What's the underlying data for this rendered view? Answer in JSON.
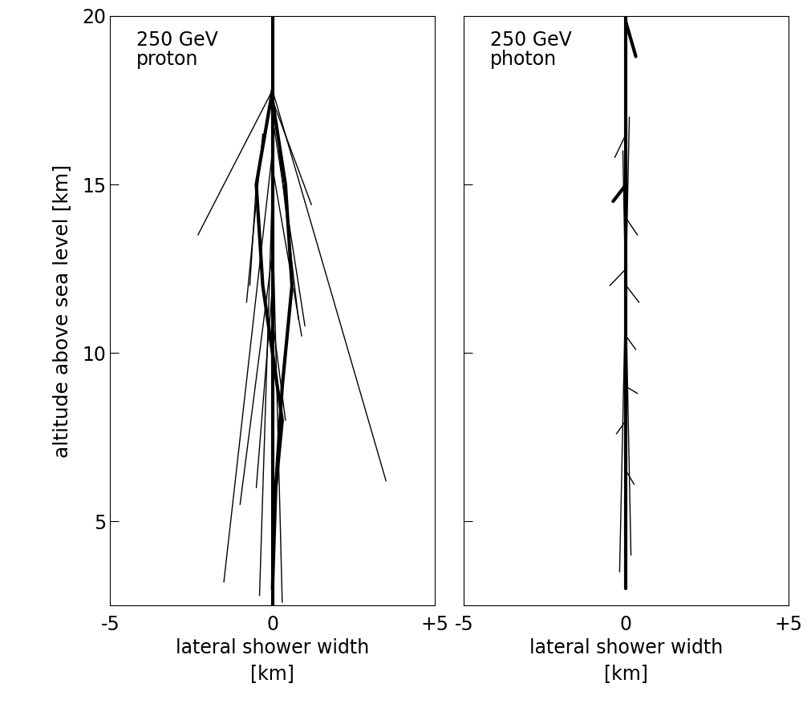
{
  "chart_data": [
    {
      "type": "line",
      "annotation": "250 GeV\nproton",
      "xlabel": "lateral shower width\n[km]",
      "ylabel": "altitude above sea level [km]",
      "xlim": [
        -5,
        5
      ],
      "ylim": [
        2.5,
        20
      ],
      "xticks": [
        -5,
        0,
        {
          "value": 5,
          "label": "+5"
        }
      ],
      "yticks": [
        5,
        10,
        15,
        20
      ],
      "color": "#000000",
      "series": [
        {
          "x": [
            0,
            0
          ],
          "values": [
            20,
            2.5
          ]
        },
        {
          "x": [
            0,
            -0.5,
            -0.3,
            0,
            0.3,
            0.1,
            0
          ],
          "values": [
            17.8,
            15,
            12,
            10,
            8,
            6,
            3
          ]
        },
        {
          "x": [
            0,
            0.4,
            0.6,
            0.3,
            0.1
          ],
          "values": [
            17.5,
            15,
            12,
            9,
            6
          ]
        },
        {
          "x": [
            0,
            -2.3
          ],
          "values": [
            17.8,
            13.5
          ]
        },
        {
          "x": [
            0,
            3.5
          ],
          "values": [
            17.8,
            6.2
          ]
        },
        {
          "x": [
            0,
            1.2
          ],
          "values": [
            17.5,
            14.4
          ]
        },
        {
          "x": [
            0,
            1.0
          ],
          "values": [
            17.0,
            10.8
          ]
        },
        {
          "x": [
            0,
            -1.5
          ],
          "values": [
            16.0,
            3.2
          ]
        },
        {
          "x": [
            0,
            -0.4
          ],
          "values": [
            15.0,
            2.8
          ]
        },
        {
          "x": [
            0,
            0.3
          ],
          "values": [
            14.0,
            2.6
          ]
        },
        {
          "x": [
            -0.3,
            -0.8
          ],
          "values": [
            16.5,
            11.5
          ]
        },
        {
          "x": [
            0.2,
            0.8
          ],
          "values": [
            16.0,
            11.0
          ]
        },
        {
          "x": [
            0,
            -0.5
          ],
          "values": [
            12.0,
            6.0
          ]
        },
        {
          "x": [
            0,
            0.4
          ],
          "values": [
            11.0,
            8.0
          ]
        },
        {
          "x": [
            -0.5,
            -0.7
          ],
          "values": [
            15.0,
            12.0
          ]
        },
        {
          "x": [
            0,
            -1.0
          ],
          "values": [
            13.0,
            5.5
          ]
        },
        {
          "x": [
            0,
            0.9
          ],
          "values": [
            15.5,
            10.5
          ]
        }
      ]
    },
    {
      "type": "line",
      "annotation": "250 GeV\nphoton",
      "xlabel": "lateral shower width\n[km]",
      "xlim": [
        -5,
        5
      ],
      "ylim": [
        2.5,
        20
      ],
      "xticks": [
        -5,
        0,
        {
          "value": 5,
          "label": "+5"
        }
      ],
      "yticks": [
        5,
        10,
        15
      ],
      "tick_labels": "x",
      "color": "#000000",
      "series": [
        {
          "x": [
            0,
            0
          ],
          "values": [
            20,
            3
          ]
        },
        {
          "x": [
            0,
            0.3
          ],
          "values": [
            19.8,
            18.8
          ]
        },
        {
          "x": [
            0,
            -0.4
          ],
          "values": [
            15.0,
            14.5
          ]
        },
        {
          "x": [
            0,
            0.35
          ],
          "values": [
            14.0,
            13.5
          ]
        },
        {
          "x": [
            0,
            -0.5
          ],
          "values": [
            12.5,
            12.0
          ]
        },
        {
          "x": [
            0,
            0.4
          ],
          "values": [
            12.0,
            11.5
          ]
        },
        {
          "x": [
            0,
            0.35
          ],
          "values": [
            9.0,
            8.8
          ]
        },
        {
          "x": [
            0,
            -0.3
          ],
          "values": [
            8.0,
            7.6
          ]
        },
        {
          "x": [
            0,
            0.25
          ],
          "values": [
            6.5,
            6.1
          ]
        },
        {
          "x": [
            0.1,
            -0.2
          ],
          "values": [
            17.0,
            3.5
          ]
        },
        {
          "x": [
            -0.1,
            0.15
          ],
          "values": [
            16.0,
            4.0
          ]
        },
        {
          "x": [
            0,
            -0.35
          ],
          "values": [
            16.5,
            15.8
          ]
        },
        {
          "x": [
            0,
            0.3
          ],
          "values": [
            10.5,
            10.1
          ]
        }
      ]
    }
  ]
}
